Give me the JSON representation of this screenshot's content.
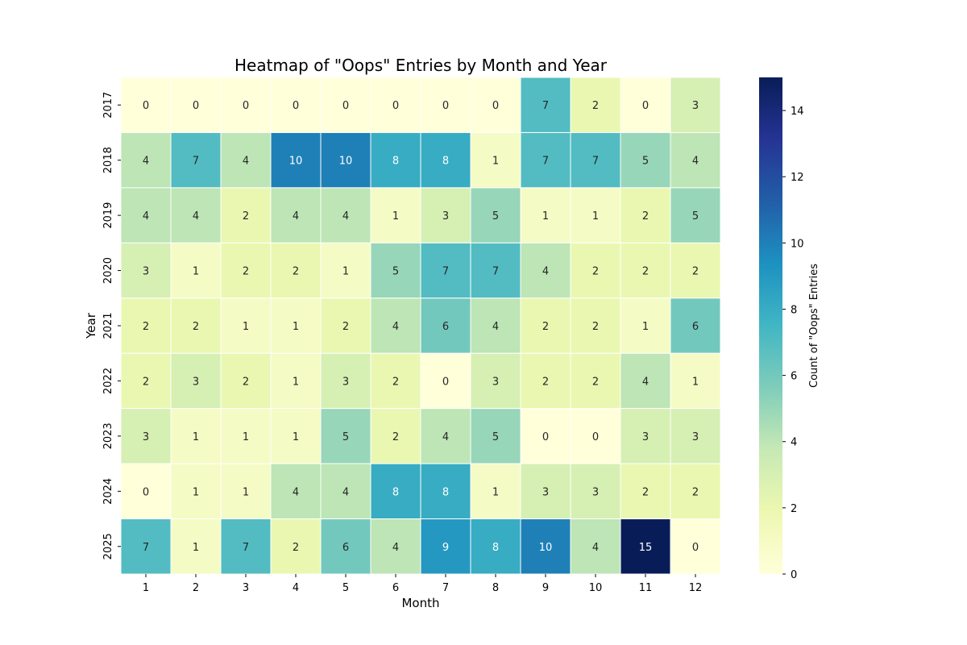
{
  "chart_data": {
    "type": "heatmap",
    "title": "Heatmap of \"Oops\" Entries by Month and Year",
    "xlabel": "Month",
    "ylabel": "Year",
    "x_categories": [
      "1",
      "2",
      "3",
      "4",
      "5",
      "6",
      "7",
      "8",
      "9",
      "10",
      "11",
      "12"
    ],
    "y_categories": [
      "2017",
      "2018",
      "2019",
      "2020",
      "2021",
      "2022",
      "2023",
      "2024",
      "2025"
    ],
    "values": [
      [
        0,
        0,
        0,
        0,
        0,
        0,
        0,
        0,
        7,
        2,
        0,
        3
      ],
      [
        4,
        7,
        4,
        10,
        10,
        8,
        8,
        1,
        7,
        7,
        5,
        4
      ],
      [
        4,
        4,
        2,
        4,
        4,
        1,
        3,
        5,
        1,
        1,
        2,
        5
      ],
      [
        3,
        1,
        2,
        2,
        1,
        5,
        7,
        7,
        4,
        2,
        2,
        2
      ],
      [
        2,
        2,
        1,
        1,
        2,
        4,
        6,
        4,
        2,
        2,
        1,
        6
      ],
      [
        2,
        3,
        2,
        1,
        3,
        2,
        0,
        3,
        2,
        2,
        4,
        1
      ],
      [
        3,
        1,
        1,
        1,
        5,
        2,
        4,
        5,
        0,
        0,
        3,
        3
      ],
      [
        0,
        1,
        1,
        4,
        4,
        8,
        8,
        1,
        3,
        3,
        2,
        2
      ],
      [
        7,
        1,
        7,
        2,
        6,
        4,
        9,
        8,
        10,
        4,
        15,
        0
      ]
    ],
    "colormap": "YlGnBu",
    "colormap_stops": [
      "#ffffd9",
      "#edf8b1",
      "#c7e9b4",
      "#7fcdbb",
      "#41b6c4",
      "#1d91c0",
      "#225ea8",
      "#253494",
      "#081d58"
    ],
    "colorbar": {
      "label": "Count of \"Oops\" Entries",
      "range": [
        0,
        15
      ],
      "ticks": [
        "0",
        "2",
        "4",
        "6",
        "8",
        "10",
        "12",
        "14"
      ]
    },
    "annotations": true,
    "grid": false
  }
}
